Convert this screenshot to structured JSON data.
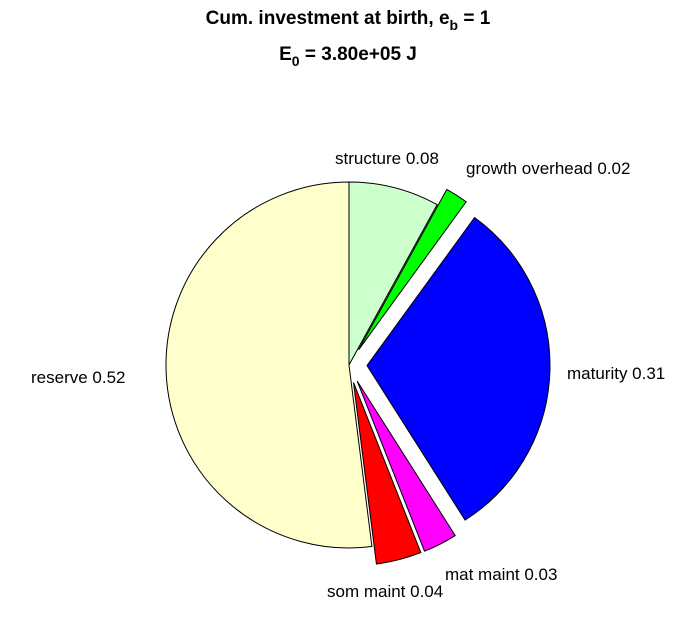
{
  "chart_data": {
    "type": "pie",
    "title_line1": {
      "prefix": "Cum. investment at birth, e",
      "sub": "b",
      "suffix": " = 1"
    },
    "title_line2": {
      "prefix": "E",
      "sub": "0",
      "suffix": " = 3.80e+05 J"
    },
    "slices": [
      {
        "name": "structure",
        "value": 0.08,
        "label": "structure 0.08",
        "color": "#ccffcc",
        "exploded": false
      },
      {
        "name": "growth overhead",
        "value": 0.02,
        "label": "growth overhead 0.02",
        "color": "#00ff00",
        "exploded": true
      },
      {
        "name": "maturity",
        "value": 0.31,
        "label": "maturity 0.31",
        "color": "#0000ff",
        "exploded": true
      },
      {
        "name": "mat maint",
        "value": 0.03,
        "label": "mat maint 0.03",
        "color": "#ff00ff",
        "exploded": true
      },
      {
        "name": "som maint",
        "value": 0.04,
        "label": "som maint 0.04",
        "color": "#ff0000",
        "exploded": true
      },
      {
        "name": "reserve",
        "value": 0.52,
        "label": "reserve 0.52",
        "color": "#ffffcc",
        "exploded": false
      }
    ]
  }
}
